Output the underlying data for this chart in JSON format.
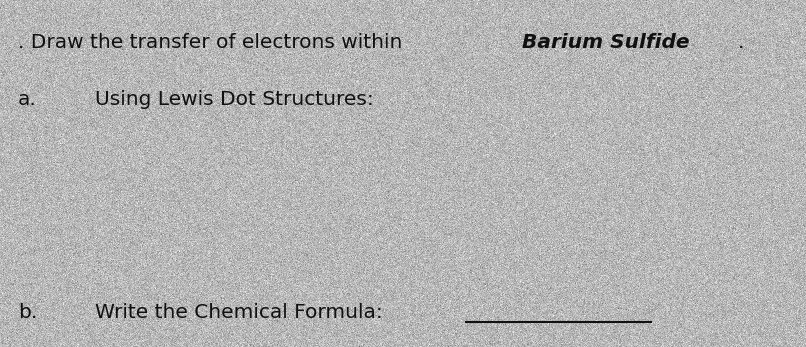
{
  "bg_color": "#b8b8b8",
  "noise_alpha": 0.18,
  "title_normal": ". Draw the transfer of electrons within ",
  "title_bold_italic": "Barium Sulfide",
  "title_period": ".",
  "title_fontsize": 14.5,
  "label_a": "a.",
  "text_a": "Using Lewis Dot Structures:",
  "text_a_fontsize": 14.5,
  "label_b": "b.",
  "text_b": "Write the Chemical Formula:",
  "text_b_fontsize": 14.5,
  "underline_color": "#111111",
  "underline_lw": 1.5,
  "text_color": "#111111",
  "label_fontsize": 14.5
}
